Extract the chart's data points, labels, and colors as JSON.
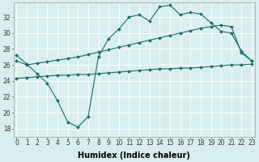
{
  "xlabel": "Humidex (Indice chaleur)",
  "ylabel": "",
  "bg_color": "#d8eeee",
  "grid_color": "#ffffff",
  "line_color": "#1a6b6b",
  "x_ticks": [
    0,
    1,
    2,
    3,
    4,
    5,
    6,
    7,
    8,
    9,
    10,
    11,
    12,
    13,
    14,
    15,
    16,
    17,
    18,
    19,
    20,
    21,
    22,
    23
  ],
  "y_ticks": [
    18,
    20,
    22,
    24,
    26,
    28,
    30,
    32
  ],
  "ylim": [
    17.0,
    33.8
  ],
  "xlim": [
    -0.3,
    23.3
  ],
  "line1_x": [
    0,
    1,
    2,
    3,
    4,
    5,
    6,
    7,
    8,
    9,
    10,
    11,
    12,
    13,
    14,
    15,
    16,
    17,
    18,
    19,
    20,
    21,
    22,
    23
  ],
  "line1_y": [
    27.2,
    26.1,
    24.9,
    23.7,
    21.5,
    18.8,
    18.2,
    19.5,
    27.0,
    29.3,
    30.5,
    32.0,
    32.3,
    31.5,
    33.3,
    33.5,
    32.3,
    32.6,
    32.4,
    31.3,
    30.2,
    30.0,
    27.7,
    26.5
  ],
  "line1_markers": [
    0,
    1,
    2,
    3,
    4,
    5,
    6,
    7,
    8,
    9,
    10,
    11,
    12,
    13,
    14,
    15,
    16,
    17,
    18,
    19,
    20,
    21,
    22,
    23
  ],
  "line2_x": [
    0,
    1,
    2,
    3,
    4,
    5,
    6,
    7,
    8,
    9,
    10,
    11,
    12,
    13,
    14,
    15,
    16,
    17,
    18,
    19,
    20,
    21,
    22,
    23
  ],
  "line2_y": [
    26.5,
    26.0,
    26.2,
    26.4,
    26.6,
    26.8,
    27.0,
    27.3,
    27.6,
    27.9,
    28.2,
    28.5,
    28.8,
    29.1,
    29.4,
    29.7,
    30.0,
    30.3,
    30.6,
    30.8,
    31.0,
    30.8,
    27.5,
    26.5
  ],
  "line2_markers": [
    0,
    1,
    2,
    3,
    4,
    5,
    6,
    7,
    8,
    9,
    10,
    11,
    12,
    13,
    14,
    15,
    16,
    17,
    18,
    19,
    20,
    21,
    22,
    23
  ],
  "line3_x": [
    0,
    1,
    2,
    3,
    4,
    5,
    6,
    7,
    8,
    9,
    10,
    11,
    12,
    13,
    14,
    15,
    16,
    17,
    18,
    19,
    20,
    21,
    22,
    23
  ],
  "line3_y": [
    24.3,
    24.4,
    24.5,
    24.6,
    24.7,
    24.7,
    24.8,
    24.8,
    24.9,
    25.0,
    25.1,
    25.2,
    25.3,
    25.4,
    25.5,
    25.5,
    25.6,
    25.6,
    25.7,
    25.8,
    25.9,
    26.0,
    26.0,
    26.1
  ],
  "line3_markers": [
    0,
    1,
    2,
    3,
    4,
    5,
    6,
    7,
    8,
    9,
    10,
    11,
    12,
    13,
    14,
    15,
    16,
    17,
    18,
    19,
    20,
    21,
    22,
    23
  ],
  "marker": "D",
  "markersize": 2.0,
  "linewidth": 0.8,
  "tick_fontsize": 5.5,
  "label_fontsize": 7.0
}
